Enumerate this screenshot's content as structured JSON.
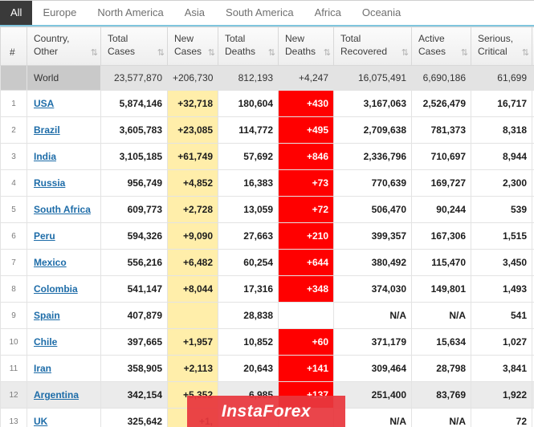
{
  "tabs": {
    "items": [
      {
        "label": "All",
        "active": true
      },
      {
        "label": "Europe",
        "active": false
      },
      {
        "label": "North America",
        "active": false
      },
      {
        "label": "Asia",
        "active": false
      },
      {
        "label": "South America",
        "active": false
      },
      {
        "label": "Africa",
        "active": false
      },
      {
        "label": "Oceania",
        "active": false
      }
    ]
  },
  "table": {
    "sort_icon": "⇅",
    "columns": [
      {
        "key": "rank",
        "label": "#",
        "sortable": false
      },
      {
        "key": "country",
        "label": "Country, Other",
        "sortable": true
      },
      {
        "key": "total_cases",
        "label": "Total Cases",
        "sortable": true
      },
      {
        "key": "new_cases",
        "label": "New Cases",
        "sortable": true
      },
      {
        "key": "total_deaths",
        "label": "Total Deaths",
        "sortable": true
      },
      {
        "key": "new_deaths",
        "label": "New Deaths",
        "sortable": true
      },
      {
        "key": "total_recovered",
        "label": "Total Recovered",
        "sortable": true
      },
      {
        "key": "active_cases",
        "label": "Active Cases",
        "sortable": true
      },
      {
        "key": "serious_critical",
        "label": "Serious, Critical",
        "sortable": true
      }
    ],
    "world_row": {
      "rank": "",
      "country": "World",
      "total_cases": "23,577,870",
      "new_cases": "+206,730",
      "total_deaths": "812,193",
      "new_deaths": "+4,247",
      "total_recovered": "16,075,491",
      "active_cases": "6,690,186",
      "serious_critical": "61,699"
    },
    "rows": [
      {
        "rank": "1",
        "country": "USA",
        "total_cases": "5,874,146",
        "new_cases": "+32,718",
        "total_deaths": "180,604",
        "new_deaths": "+430",
        "total_recovered": "3,167,063",
        "active_cases": "2,526,479",
        "serious_critical": "16,717",
        "new_cases_highlight": true,
        "new_deaths_highlight": true,
        "row_highlight": false
      },
      {
        "rank": "2",
        "country": "Brazil",
        "total_cases": "3,605,783",
        "new_cases": "+23,085",
        "total_deaths": "114,772",
        "new_deaths": "+495",
        "total_recovered": "2,709,638",
        "active_cases": "781,373",
        "serious_critical": "8,318",
        "new_cases_highlight": true,
        "new_deaths_highlight": true,
        "row_highlight": false
      },
      {
        "rank": "3",
        "country": "India",
        "total_cases": "3,105,185",
        "new_cases": "+61,749",
        "total_deaths": "57,692",
        "new_deaths": "+846",
        "total_recovered": "2,336,796",
        "active_cases": "710,697",
        "serious_critical": "8,944",
        "new_cases_highlight": true,
        "new_deaths_highlight": true,
        "row_highlight": false
      },
      {
        "rank": "4",
        "country": "Russia",
        "total_cases": "956,749",
        "new_cases": "+4,852",
        "total_deaths": "16,383",
        "new_deaths": "+73",
        "total_recovered": "770,639",
        "active_cases": "169,727",
        "serious_critical": "2,300",
        "new_cases_highlight": true,
        "new_deaths_highlight": true,
        "row_highlight": false
      },
      {
        "rank": "5",
        "country": "South Africa",
        "total_cases": "609,773",
        "new_cases": "+2,728",
        "total_deaths": "13,059",
        "new_deaths": "+72",
        "total_recovered": "506,470",
        "active_cases": "90,244",
        "serious_critical": "539",
        "new_cases_highlight": true,
        "new_deaths_highlight": true,
        "row_highlight": false
      },
      {
        "rank": "6",
        "country": "Peru",
        "total_cases": "594,326",
        "new_cases": "+9,090",
        "total_deaths": "27,663",
        "new_deaths": "+210",
        "total_recovered": "399,357",
        "active_cases": "167,306",
        "serious_critical": "1,515",
        "new_cases_highlight": true,
        "new_deaths_highlight": true,
        "row_highlight": false
      },
      {
        "rank": "7",
        "country": "Mexico",
        "total_cases": "556,216",
        "new_cases": "+6,482",
        "total_deaths": "60,254",
        "new_deaths": "+644",
        "total_recovered": "380,492",
        "active_cases": "115,470",
        "serious_critical": "3,450",
        "new_cases_highlight": true,
        "new_deaths_highlight": true,
        "row_highlight": false
      },
      {
        "rank": "8",
        "country": "Colombia",
        "total_cases": "541,147",
        "new_cases": "+8,044",
        "total_deaths": "17,316",
        "new_deaths": "+348",
        "total_recovered": "374,030",
        "active_cases": "149,801",
        "serious_critical": "1,493",
        "new_cases_highlight": true,
        "new_deaths_highlight": true,
        "row_highlight": false
      },
      {
        "rank": "9",
        "country": "Spain",
        "total_cases": "407,879",
        "new_cases": "",
        "total_deaths": "28,838",
        "new_deaths": "",
        "total_recovered": "N/A",
        "active_cases": "N/A",
        "serious_critical": "541",
        "new_cases_highlight": true,
        "new_deaths_highlight": false,
        "row_highlight": false
      },
      {
        "rank": "10",
        "country": "Chile",
        "total_cases": "397,665",
        "new_cases": "+1,957",
        "total_deaths": "10,852",
        "new_deaths": "+60",
        "total_recovered": "371,179",
        "active_cases": "15,634",
        "serious_critical": "1,027",
        "new_cases_highlight": true,
        "new_deaths_highlight": true,
        "row_highlight": false
      },
      {
        "rank": "11",
        "country": "Iran",
        "total_cases": "358,905",
        "new_cases": "+2,113",
        "total_deaths": "20,643",
        "new_deaths": "+141",
        "total_recovered": "309,464",
        "active_cases": "28,798",
        "serious_critical": "3,841",
        "new_cases_highlight": true,
        "new_deaths_highlight": true,
        "row_highlight": false
      },
      {
        "rank": "12",
        "country": "Argentina",
        "total_cases": "342,154",
        "new_cases": "+5,352",
        "total_deaths": "6,985",
        "new_deaths": "+137",
        "total_recovered": "251,400",
        "active_cases": "83,769",
        "serious_critical": "1,922",
        "new_cases_highlight": true,
        "new_deaths_highlight": true,
        "row_highlight": true
      },
      {
        "rank": "13",
        "country": "UK",
        "total_cases": "325,642",
        "new_cases": "+1,",
        "total_deaths": "",
        "new_deaths": "",
        "total_recovered": "N/A",
        "active_cases": "N/A",
        "serious_critical": "72",
        "new_cases_highlight": true,
        "new_deaths_highlight": false,
        "row_highlight": false
      }
    ]
  },
  "watermark": {
    "text": "InstaForex"
  },
  "colors": {
    "new_cases_bg": "#ffeeaa",
    "new_deaths_bg": "#ff0000",
    "active_tab_bg": "#3a3a3a",
    "tab_underline": "#7fc5dd",
    "link": "#1d6ca8"
  }
}
